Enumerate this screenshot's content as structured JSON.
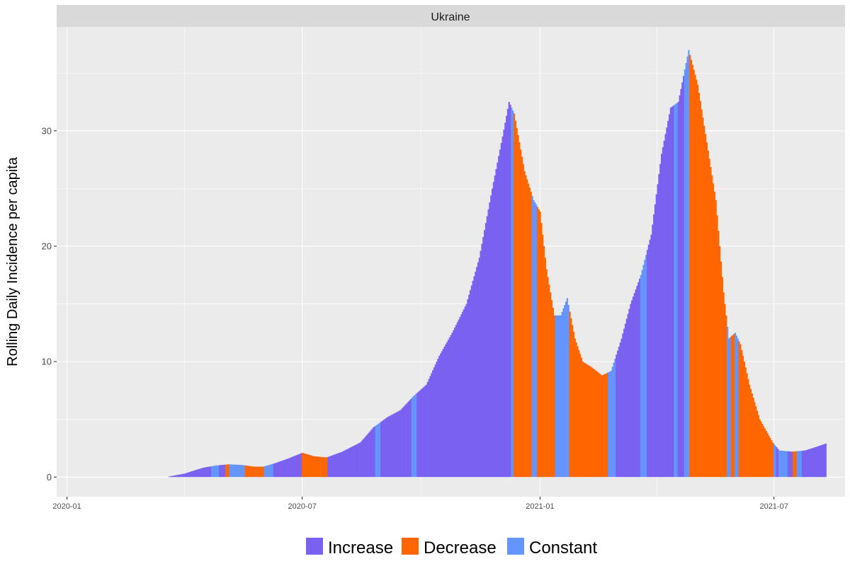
{
  "chart_data": {
    "type": "bar",
    "panel_title": "Ukraine",
    "xlabel": "",
    "ylabel": "Rolling Daily Incidence per capita",
    "ylim": [
      -1.7,
      39.0
    ],
    "yticks": [
      0,
      10,
      20,
      30
    ],
    "ytick_labels": [
      "0",
      "10",
      "20",
      "30"
    ],
    "x_range": [
      "2019-12-24",
      "2021-08-25"
    ],
    "xticks": [
      "2020-01-01",
      "2020-07-01",
      "2021-01-01",
      "2021-07-01"
    ],
    "xtick_labels": [
      "2020-01",
      "2020-07",
      "2021-01",
      "2021-07"
    ],
    "grid": true,
    "legend_position": "bottom",
    "legend": [
      {
        "key": "increase",
        "label": "Increase",
        "color": "#7b61f0"
      },
      {
        "key": "decrease",
        "label": "Decrease",
        "color": "#ff6600"
      },
      {
        "key": "constant",
        "label": "Constant",
        "color": "#6495ff"
      }
    ],
    "series_note_points": "daily values interpolated between these knots (date, value)",
    "points": [
      [
        "2020-03-20",
        0.05
      ],
      [
        "2020-04-01",
        0.3
      ],
      [
        "2020-04-15",
        0.8
      ],
      [
        "2020-04-25",
        1.0
      ],
      [
        "2020-05-05",
        1.1
      ],
      [
        "2020-05-15",
        1.05
      ],
      [
        "2020-05-25",
        0.9
      ],
      [
        "2020-06-01",
        0.9
      ],
      [
        "2020-06-10",
        1.2
      ],
      [
        "2020-06-20",
        1.6
      ],
      [
        "2020-07-01",
        2.1
      ],
      [
        "2020-07-10",
        1.8
      ],
      [
        "2020-07-20",
        1.7
      ],
      [
        "2020-08-01",
        2.2
      ],
      [
        "2020-08-15",
        3.0
      ],
      [
        "2020-08-25",
        4.3
      ],
      [
        "2020-09-05",
        5.2
      ],
      [
        "2020-09-15",
        5.8
      ],
      [
        "2020-09-25",
        7.0
      ],
      [
        "2020-10-05",
        8.0
      ],
      [
        "2020-10-15",
        10.5
      ],
      [
        "2020-10-25",
        12.5
      ],
      [
        "2020-11-05",
        15.0
      ],
      [
        "2020-11-15",
        19.0
      ],
      [
        "2020-11-25",
        25.0
      ],
      [
        "2020-12-03",
        29.5
      ],
      [
        "2020-12-08",
        32.5
      ],
      [
        "2020-12-12",
        31.5
      ],
      [
        "2020-12-20",
        26.5
      ],
      [
        "2020-12-27",
        24.0
      ],
      [
        "2021-01-01",
        23.0
      ],
      [
        "2021-01-06",
        18.0
      ],
      [
        "2021-01-12",
        14.0
      ],
      [
        "2021-01-17",
        14.0
      ],
      [
        "2021-01-22",
        15.5
      ],
      [
        "2021-01-28",
        12.0
      ],
      [
        "2021-02-03",
        10.0
      ],
      [
        "2021-02-10",
        9.5
      ],
      [
        "2021-02-18",
        8.8
      ],
      [
        "2021-02-25",
        9.2
      ],
      [
        "2021-03-05",
        12.0
      ],
      [
        "2021-03-12",
        15.0
      ],
      [
        "2021-03-20",
        17.5
      ],
      [
        "2021-03-28",
        21.0
      ],
      [
        "2021-04-05",
        28.0
      ],
      [
        "2021-04-12",
        32.0
      ],
      [
        "2021-04-18",
        32.5
      ],
      [
        "2021-04-26",
        37.0
      ],
      [
        "2021-05-03",
        34.0
      ],
      [
        "2021-05-10",
        29.0
      ],
      [
        "2021-05-17",
        24.0
      ],
      [
        "2021-05-23",
        16.0
      ],
      [
        "2021-05-27",
        12.0
      ],
      [
        "2021-06-01",
        12.5
      ],
      [
        "2021-06-05",
        11.5
      ],
      [
        "2021-06-12",
        8.0
      ],
      [
        "2021-06-20",
        5.0
      ],
      [
        "2021-06-30",
        3.0
      ],
      [
        "2021-07-05",
        2.3
      ],
      [
        "2021-07-15",
        2.2
      ],
      [
        "2021-07-25",
        2.3
      ],
      [
        "2021-08-05",
        2.7
      ],
      [
        "2021-08-10",
        2.9
      ]
    ],
    "segments_note": "bar colour by date range (inclusive); default category is increase",
    "segments": [
      [
        "2020-04-22",
        "2020-04-27",
        "constant"
      ],
      [
        "2020-04-28",
        "2020-05-02",
        "increase"
      ],
      [
        "2020-05-03",
        "2020-05-05",
        "decrease"
      ],
      [
        "2020-05-06",
        "2020-05-08",
        "constant"
      ],
      [
        "2020-05-09",
        "2020-05-17",
        "constant"
      ],
      [
        "2020-05-18",
        "2020-06-01",
        "decrease"
      ],
      [
        "2020-06-02",
        "2020-06-08",
        "constant"
      ],
      [
        "2020-07-01",
        "2020-07-10",
        "decrease"
      ],
      [
        "2020-07-11",
        "2020-07-20",
        "decrease"
      ],
      [
        "2020-08-27",
        "2020-08-30",
        "constant"
      ],
      [
        "2020-09-24",
        "2020-09-27",
        "constant"
      ],
      [
        "2020-12-10",
        "2020-12-11",
        "constant"
      ],
      [
        "2020-12-12",
        "2020-12-25",
        "decrease"
      ],
      [
        "2020-12-26",
        "2020-12-29",
        "constant"
      ],
      [
        "2020-12-30",
        "2021-01-12",
        "decrease"
      ],
      [
        "2021-01-13",
        "2021-01-17",
        "constant"
      ],
      [
        "2021-01-18",
        "2021-01-23",
        "constant"
      ],
      [
        "2021-01-24",
        "2021-02-22",
        "decrease"
      ],
      [
        "2021-02-23",
        "2021-02-28",
        "constant"
      ],
      [
        "2021-03-20",
        "2021-03-24",
        "constant"
      ],
      [
        "2021-04-15",
        "2021-04-17",
        "constant"
      ],
      [
        "2021-04-23",
        "2021-04-26",
        "constant"
      ],
      [
        "2021-04-27",
        "2021-05-25",
        "decrease"
      ],
      [
        "2021-05-26",
        "2021-05-28",
        "constant"
      ],
      [
        "2021-05-29",
        "2021-05-31",
        "decrease"
      ],
      [
        "2021-06-01",
        "2021-06-03",
        "constant"
      ],
      [
        "2021-06-04",
        "2021-06-08",
        "decrease"
      ],
      [
        "2021-06-09",
        "2021-06-11",
        "decrease"
      ],
      [
        "2021-06-12",
        "2021-06-30",
        "decrease"
      ],
      [
        "2021-07-01",
        "2021-07-02",
        "constant"
      ],
      [
        "2021-07-05",
        "2021-07-11",
        "constant"
      ],
      [
        "2021-07-12",
        "2021-07-15",
        "increase"
      ],
      [
        "2021-07-16",
        "2021-07-18",
        "decrease"
      ],
      [
        "2021-07-19",
        "2021-07-22",
        "constant"
      ]
    ]
  }
}
